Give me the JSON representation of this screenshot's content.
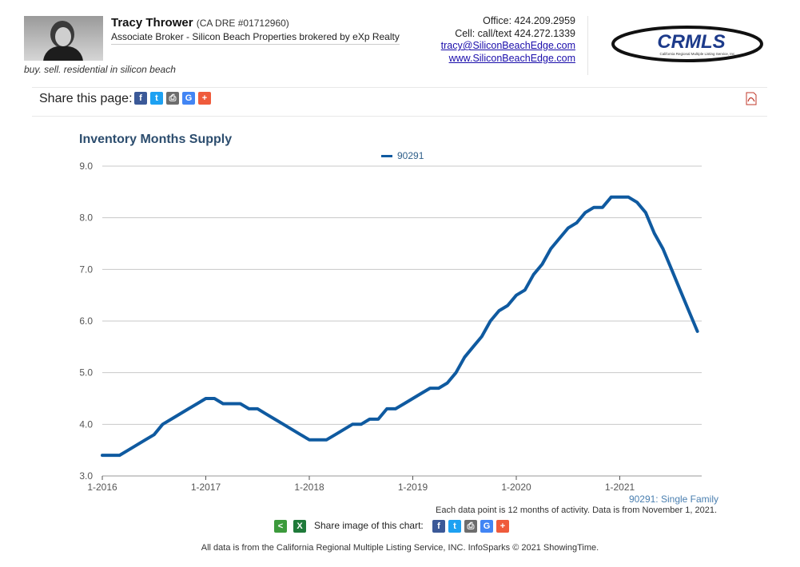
{
  "header": {
    "agent_name": "Tracy Thrower",
    "agent_dre": "(CA DRE #01712960)",
    "agent_title": "Associate Broker - Silicon Beach Properties brokered by eXp Realty",
    "tagline": "buy. sell. residential in silicon beach",
    "office": "Office: 424.209.2959",
    "cell": "Cell: call/text 424.272.1339",
    "email": "tracy@SiliconBeachEdge.com",
    "website": "www.SiliconBeachEdge.com",
    "logo_text": "CRMLS",
    "logo_subtext": "California Regional Multiple Listing Service, Inc."
  },
  "share": {
    "label": "Share this page:",
    "icons": [
      "facebook-icon",
      "twitter-icon",
      "print-icon",
      "google-icon",
      "plus-icon"
    ]
  },
  "chart_data": {
    "type": "line",
    "title": "Inventory Months Supply",
    "xlabel": "",
    "ylabel": "",
    "ylim": [
      3.0,
      9.0
    ],
    "yticks": [
      "3.0",
      "4.0",
      "5.0",
      "6.0",
      "7.0",
      "8.0",
      "9.0"
    ],
    "xticks": [
      "1-2016",
      "1-2017",
      "1-2018",
      "1-2019",
      "1-2020",
      "1-2021"
    ],
    "grid": true,
    "legend_placement": "top-center",
    "line_color": "#0f5aa0",
    "series": [
      {
        "name": "90291",
        "x": [
          "1-2016",
          "2-2016",
          "3-2016",
          "4-2016",
          "5-2016",
          "6-2016",
          "7-2016",
          "8-2016",
          "9-2016",
          "10-2016",
          "11-2016",
          "12-2016",
          "1-2017",
          "2-2017",
          "3-2017",
          "4-2017",
          "5-2017",
          "6-2017",
          "7-2017",
          "8-2017",
          "9-2017",
          "10-2017",
          "11-2017",
          "12-2017",
          "1-2018",
          "2-2018",
          "3-2018",
          "4-2018",
          "5-2018",
          "6-2018",
          "7-2018",
          "8-2018",
          "9-2018",
          "10-2018",
          "11-2018",
          "12-2018",
          "1-2019",
          "2-2019",
          "3-2019",
          "4-2019",
          "5-2019",
          "6-2019",
          "7-2019",
          "8-2019",
          "9-2019",
          "10-2019",
          "11-2019",
          "12-2019",
          "1-2020",
          "2-2020",
          "3-2020",
          "4-2020",
          "5-2020",
          "6-2020",
          "7-2020",
          "8-2020",
          "9-2020",
          "10-2020",
          "11-2020",
          "12-2020",
          "1-2021",
          "2-2021",
          "3-2021",
          "4-2021",
          "5-2021",
          "6-2021",
          "7-2021",
          "8-2021",
          "9-2021",
          "10-2021"
        ],
        "values": [
          3.4,
          3.4,
          3.4,
          3.5,
          3.6,
          3.7,
          3.8,
          4.0,
          4.1,
          4.2,
          4.3,
          4.4,
          4.5,
          4.5,
          4.4,
          4.4,
          4.4,
          4.3,
          4.3,
          4.2,
          4.1,
          4.0,
          3.9,
          3.8,
          3.7,
          3.7,
          3.7,
          3.8,
          3.9,
          4.0,
          4.0,
          4.1,
          4.1,
          4.3,
          4.3,
          4.4,
          4.5,
          4.6,
          4.7,
          4.7,
          4.8,
          5.0,
          5.3,
          5.5,
          5.7,
          6.0,
          6.2,
          6.3,
          6.5,
          6.6,
          6.9,
          7.1,
          7.4,
          7.6,
          7.8,
          7.9,
          8.1,
          8.2,
          8.2,
          8.4,
          8.4,
          8.4,
          8.3,
          8.1,
          7.7,
          7.4,
          7.0,
          6.6,
          6.2,
          5.8
        ]
      }
    ],
    "series_note": "90291: Single Family",
    "data_note": "Each data point is 12 months of activity. Data is from November 1, 2021."
  },
  "share_image": {
    "label": "Share image of this chart:",
    "icons": [
      "share-icon",
      "excel-icon",
      "facebook-icon",
      "twitter-icon",
      "print-icon",
      "google-icon",
      "plus-icon"
    ]
  },
  "footer": "All data is from the California Regional Multiple Listing Service, INC. InfoSparks © 2021 ShowingTime.",
  "colors": {
    "facebook": "#3b5998",
    "twitter": "#1da1f2",
    "print": "#6d6d6d",
    "google": "#4285f4",
    "plus": "#ef5b3c",
    "share_green": "#3c9a3c",
    "excel_green": "#1f7a3a",
    "title_blue": "#2c4d6e",
    "grid": "#c8c8c8"
  }
}
